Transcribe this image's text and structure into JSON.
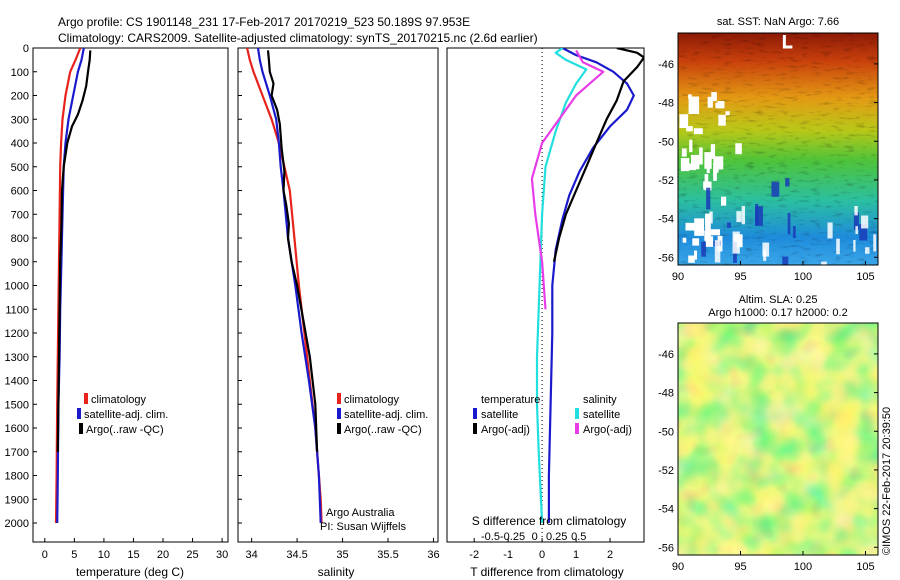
{
  "header": {
    "line1": "Argo profile: CS 1901148_231 17-Feb-2017 20170219_523 50.189S 97.953E",
    "line2": "Climatology: CARS2009. Satellite-adjusted climatology: synTS_20170215.nc (2.6d earlier)"
  },
  "credit": "©IMOS 22-Feb-2017 20:39:50",
  "colors": {
    "climatology": "#e8231c",
    "satellite": "#1a1acc",
    "argo": "#000000",
    "sat_salinity": "#22dede",
    "argo_salinity": "#e83ce8"
  },
  "chart_data": [
    {
      "type": "line",
      "name": "temperature-profile",
      "xlabel": "temperature (deg C)",
      "ylabel": "",
      "xlim": [
        -2,
        31
      ],
      "ylim": [
        2080,
        0
      ],
      "xticks": [
        "0",
        "5",
        "10",
        "15",
        "20",
        "25",
        "30"
      ],
      "yticks": [
        "0",
        "100",
        "200",
        "300",
        "400",
        "500",
        "600",
        "700",
        "800",
        "900",
        "1000",
        "1100",
        "1200",
        "1300",
        "1400",
        "1500",
        "1600",
        "1700",
        "1800",
        "1900",
        "2000"
      ],
      "legend": {
        "position": "lower-left",
        "entries": [
          "climatology",
          "satellite-adj. clim.",
          "Argo(..raw -QC)"
        ]
      },
      "series": [
        {
          "name": "climatology",
          "color": "#e8231c",
          "x": [
            6.0,
            5.2,
            4.3,
            3.5,
            3.0,
            2.75,
            2.6,
            2.5,
            2.4,
            2.3,
            2.2,
            2.1,
            2.0,
            1.9
          ],
          "y": [
            0,
            50,
            100,
            200,
            300,
            400,
            500,
            700,
            900,
            1100,
            1300,
            1500,
            1800,
            2000
          ]
        },
        {
          "name": "satellite-adj. clim.",
          "color": "#1a1acc",
          "x": [
            6.6,
            6.2,
            5.6,
            4.8,
            4.0,
            3.5,
            3.2,
            3.0,
            2.8,
            2.6,
            2.5,
            2.3,
            2.2,
            2.1
          ],
          "y": [
            0,
            50,
            100,
            200,
            300,
            400,
            500,
            700,
            900,
            1100,
            1300,
            1500,
            1800,
            2000
          ]
        },
        {
          "name": "Argo(..raw -QC)",
          "color": "#000000",
          "x": [
            7.7,
            7.6,
            7.3,
            7.0,
            6.4,
            5.6,
            4.6,
            3.8,
            3.2,
            2.9,
            2.8,
            2.6,
            2.5,
            2.4,
            2.3,
            2.2
          ],
          "y": [
            10,
            50,
            100,
            160,
            220,
            280,
            330,
            400,
            500,
            600,
            750,
            900,
            1100,
            1300,
            1500,
            1700
          ]
        }
      ]
    },
    {
      "type": "line",
      "name": "salinity-profile",
      "xlabel": "salinity",
      "ylabel": "",
      "xlim": [
        33.85,
        36.05
      ],
      "ylim": [
        2080,
        0
      ],
      "xticks": [
        "34",
        "34.5",
        "35",
        "35.5",
        "36"
      ],
      "legend": {
        "position": "lower-right",
        "entries": [
          "climatology",
          "satellite-adj. clim.",
          "Argo(..raw -QC)"
        ]
      },
      "annotation": [
        "Argo Australia",
        "PI: Susan Wijffels"
      ],
      "series": [
        {
          "name": "climatology",
          "color": "#e8231c",
          "x": [
            33.95,
            33.98,
            34.02,
            34.12,
            34.22,
            34.3,
            34.36,
            34.42,
            34.47,
            34.52,
            34.58,
            34.64,
            34.7,
            34.74,
            34.76,
            34.77
          ],
          "y": [
            0,
            50,
            100,
            200,
            300,
            400,
            500,
            600,
            800,
            1000,
            1200,
            1400,
            1600,
            1800,
            1900,
            2000
          ]
        },
        {
          "name": "satellite-adj. clim.",
          "color": "#1a1acc",
          "x": [
            34.07,
            34.09,
            34.12,
            34.2,
            34.27,
            34.3,
            34.32,
            34.35,
            34.4,
            34.48,
            34.55,
            34.63,
            34.7,
            34.74,
            34.76
          ],
          "y": [
            0,
            50,
            100,
            200,
            300,
            400,
            500,
            600,
            800,
            1000,
            1200,
            1400,
            1600,
            1800,
            2000
          ]
        },
        {
          "name": "Argo(..raw -QC)",
          "color": "#000000",
          "x": [
            34.18,
            34.19,
            34.2,
            34.24,
            34.22,
            34.28,
            34.31,
            34.33,
            34.36,
            34.35,
            34.38,
            34.41,
            34.4,
            34.44,
            34.5,
            34.57,
            34.64,
            34.7,
            34.72
          ],
          "y": [
            10,
            50,
            100,
            150,
            200,
            260,
            320,
            420,
            520,
            600,
            660,
            740,
            800,
            900,
            1000,
            1150,
            1300,
            1500,
            1700
          ]
        }
      ]
    },
    {
      "type": "line",
      "name": "difference-profile",
      "xlabel": "T difference from climatology",
      "xlabel_top": "S difference from climatology",
      "xlim": [
        -2.8,
        3.0
      ],
      "ylim": [
        2080,
        0
      ],
      "xticks": [
        "-2",
        "-1",
        "0",
        "1",
        "2"
      ],
      "xticks_top": [
        "-0.5",
        "-0.25",
        "0",
        "0.25",
        "0.5"
      ],
      "legend": {
        "position": "center",
        "groups": [
          {
            "title": "temperature",
            "entries": [
              "satellite",
              "Argo(-adj)"
            ]
          },
          {
            "title": "salinity",
            "entries": [
              "satellite",
              "Argo(-adj)"
            ]
          }
        ]
      },
      "series": [
        {
          "name": "temperature satellite",
          "color": "#1a1acc",
          "x": [
            0.6,
            1.0,
            1.6,
            2.1,
            2.5,
            2.7,
            2.5,
            2.0,
            1.5,
            1.1,
            0.8,
            0.6,
            0.4,
            0.3,
            0.3,
            0.25,
            0.2,
            0.2
          ],
          "y": [
            0,
            30,
            60,
            100,
            150,
            200,
            260,
            330,
            420,
            520,
            620,
            720,
            850,
            1000,
            1200,
            1500,
            1800,
            2000
          ]
        },
        {
          "name": "temperature Argo(-adj)",
          "color": "#000000",
          "x": [
            2.2,
            2.8,
            3.0,
            2.8,
            2.4,
            2.2,
            1.9,
            1.6,
            1.3,
            1.0,
            0.7,
            0.5,
            0.35
          ],
          "y": [
            0,
            20,
            40,
            80,
            140,
            220,
            300,
            400,
            500,
            600,
            700,
            800,
            900
          ]
        },
        {
          "name": "salinity satellite",
          "color": "#22dede",
          "x": [
            0.6,
            0.4,
            0.7,
            1.3,
            1.0,
            0.7,
            0.4,
            0.1,
            0.0,
            -0.05,
            -0.1,
            -0.15,
            -0.15,
            -0.1,
            -0.05,
            0.0
          ],
          "y": [
            0,
            20,
            50,
            90,
            150,
            230,
            350,
            500,
            700,
            900,
            1100,
            1300,
            1500,
            1700,
            1850,
            2000
          ]
        },
        {
          "name": "salinity Argo(-adj)",
          "color": "#e83ce8",
          "x": [
            1.0,
            1.2,
            1.8,
            1.4,
            1.0,
            0.5,
            0.0,
            -0.3,
            -0.2,
            0.0,
            0.1
          ],
          "y": [
            10,
            60,
            100,
            150,
            200,
            300,
            400,
            550,
            700,
            900,
            1100
          ]
        }
      ]
    },
    {
      "type": "heatmap",
      "name": "sst-map",
      "title": "sat. SST: NaN Argo: 7.66",
      "xlim": [
        90,
        106
      ],
      "ylim": [
        -56.4,
        -44.4
      ],
      "xticks": [
        "90",
        "95",
        "100",
        "105"
      ],
      "yticks": [
        "-46",
        "-48",
        "-50",
        "-52",
        "-54",
        "-56"
      ],
      "marker": {
        "label": "Argo float",
        "lon": 97.95,
        "lat": -50.19
      }
    },
    {
      "type": "heatmap",
      "name": "sla-map",
      "title": "Altim. SLA: 0.25",
      "subtitle": "Argo h1000: 0.17 h2000: 0.2",
      "xlim": [
        90,
        106
      ],
      "ylim": [
        -56.4,
        -44.4
      ],
      "xticks": [
        "90",
        "95",
        "100",
        "105"
      ],
      "yticks": [
        "-46",
        "-48",
        "-50",
        "-52",
        "-54",
        "-56"
      ]
    }
  ]
}
